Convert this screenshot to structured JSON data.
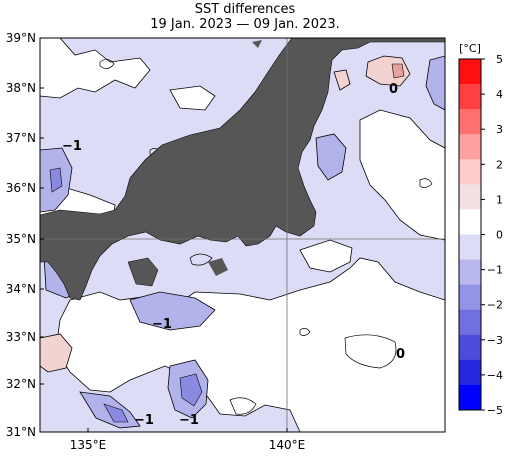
{
  "header": {
    "title": "SST differences",
    "subtitle": "19 Jan. 2023 — 09 Jan. 2023."
  },
  "map": {
    "lat_labels": [
      "39°N",
      "38°N",
      "37°N",
      "36°N",
      "35°N",
      "34°N",
      "33°N",
      "32°N",
      "31°N"
    ],
    "lon_labels": [
      "135°E",
      "140°E"
    ],
    "contour_labels": [
      "0",
      "−1",
      "−1",
      "0",
      "−1",
      "−1"
    ],
    "colors": {
      "land": "#565656",
      "neutral": "#ffffff",
      "minus1": "#dcdcf6",
      "minus2": "#b3b3ec",
      "minus3": "#8a8ae2",
      "plus1": "#f3d2d2"
    }
  },
  "colorbar": {
    "unit": "[°C]",
    "ticks": [
      "5",
      "4",
      "3",
      "2",
      "1",
      "0",
      "−1",
      "−2",
      "−3",
      "−4",
      "−5"
    ],
    "colors": [
      "#ff1010",
      "#ff4040",
      "#ff7070",
      "#ffa0a0",
      "#ffcccc",
      "#f2e2e2",
      "#ffffff",
      "#dcdcf6",
      "#b8b8ee",
      "#9494e6",
      "#7070e0",
      "#4c4cdc",
      "#2828e0",
      "#0000ff"
    ]
  }
}
